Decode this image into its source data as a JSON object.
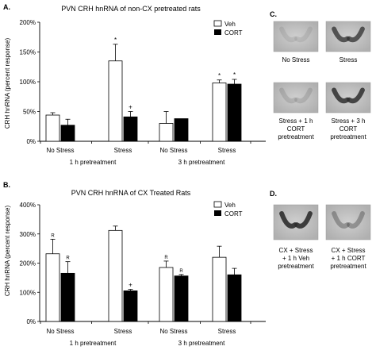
{
  "panel_letters": {
    "A": "A.",
    "B": "B.",
    "C": "C.",
    "D": "D."
  },
  "legend": {
    "veh": "Veh",
    "cort": "CORT"
  },
  "colors": {
    "veh_fill": "#ffffff",
    "cort_fill": "#000000",
    "axis": "#000000",
    "blot_bg": "#b9b9b9",
    "blot_signal": "#3a3a3a"
  },
  "chart_data": [
    {
      "type": "bar",
      "title": "PVN CRH hnRNA of non-CX pretreated rats",
      "ylabel": "CRH hnRNA (percent response)",
      "ylim": [
        0,
        200
      ],
      "yticks": [
        "0%",
        "50%",
        "100%",
        "150%",
        "200%"
      ],
      "ytick_values": [
        0,
        50,
        100,
        150,
        200
      ],
      "categories": [
        "No Stress",
        "Stress",
        "No Stress",
        "Stress"
      ],
      "groups": [
        "1 h pretreatment",
        "3 h pretreatment"
      ],
      "grid": false,
      "legend_position": "top-right",
      "series": [
        {
          "name": "Veh",
          "values": [
            44,
            135,
            30,
            98
          ],
          "errors": [
            4,
            28,
            20,
            5
          ],
          "markers": [
            "",
            "*",
            "",
            "*"
          ]
        },
        {
          "name": "CORT",
          "values": [
            27,
            41,
            38,
            96
          ],
          "errors": [
            10,
            9,
            0,
            8
          ],
          "markers": [
            "",
            "+",
            "",
            "*"
          ]
        }
      ]
    },
    {
      "type": "bar",
      "title": "PVN CRH hnRNA of CX Treated Rats",
      "ylabel": "CRH hnRNA (percent response)",
      "ylim": [
        0,
        400
      ],
      "yticks": [
        "0%",
        "100%",
        "200%",
        "300%",
        "400%"
      ],
      "ytick_values": [
        0,
        100,
        200,
        300,
        400
      ],
      "categories": [
        "No Stress",
        "Stress",
        "No Stress",
        "Stress"
      ],
      "groups": [
        "1 h pretreatment",
        "3 h pretreatment"
      ],
      "grid": false,
      "legend_position": "top-right",
      "series": [
        {
          "name": "Veh",
          "values": [
            232,
            312,
            185,
            220
          ],
          "errors": [
            50,
            15,
            22,
            38
          ],
          "markers": [
            "R",
            "",
            "R",
            ""
          ]
        },
        {
          "name": "CORT",
          "values": [
            165,
            105,
            156,
            160
          ],
          "errors": [
            40,
            5,
            5,
            22
          ],
          "markers": [
            "R",
            "+",
            "R",
            ""
          ]
        }
      ]
    }
  ],
  "blots": {
    "C": [
      {
        "label_lines": [
          "No Stress"
        ],
        "signal": 0.1
      },
      {
        "label_lines": [
          "Stress"
        ],
        "signal": 0.75
      },
      {
        "label_lines": [
          "Stress + 1 h",
          "CORT",
          "pretreatment"
        ],
        "signal": 0.15
      },
      {
        "label_lines": [
          "Stress + 3 h",
          "CORT",
          "pretreatment"
        ],
        "signal": 0.85
      }
    ],
    "D": [
      {
        "label_lines": [
          "CX + Stress",
          "+ 1 h Veh",
          "pretreatment"
        ],
        "signal": 0.9
      },
      {
        "label_lines": [
          "CX + Stress",
          "+ 1 h CORT",
          "pretreatment"
        ],
        "signal": 0.35
      }
    ]
  }
}
